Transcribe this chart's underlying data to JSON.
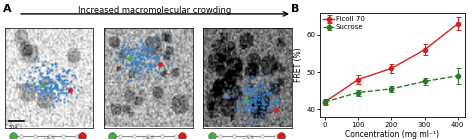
{
  "arrow_label": "Increased macromolecular crowding",
  "ficoll_x": [
    0,
    100,
    200,
    300,
    400
  ],
  "ficoll_y": [
    42.0,
    48.0,
    51.0,
    56.0,
    63.0
  ],
  "ficoll_yerr": [
    0.8,
    1.2,
    1.2,
    1.5,
    1.8
  ],
  "sucrose_x": [
    0,
    100,
    200,
    300,
    400
  ],
  "sucrose_y": [
    42.0,
    44.5,
    45.5,
    47.5,
    49.0
  ],
  "sucrose_yerr": [
    0.5,
    0.8,
    0.8,
    1.0,
    2.2
  ],
  "ficoll_color": "#d42020",
  "sucrose_color": "#2a7a2a",
  "xlabel": "Concentration (mg ml⁻¹)",
  "ylabel": "FRET (%)",
  "xlim": [
    -15,
    420
  ],
  "ylim": [
    38,
    66
  ],
  "yticks": [
    40,
    50,
    60
  ],
  "xticks": [
    0,
    100,
    200,
    300,
    400
  ],
  "legend_ficoll": "Ficoll 70",
  "legend_sucrose": "Sucrose",
  "panel_bg": "#ffffff",
  "fig_bg": "#ffffff",
  "image_bg_1": "#e8e8e8",
  "image_bg_2": "#b0b0b0",
  "image_bg_3": "#888888"
}
